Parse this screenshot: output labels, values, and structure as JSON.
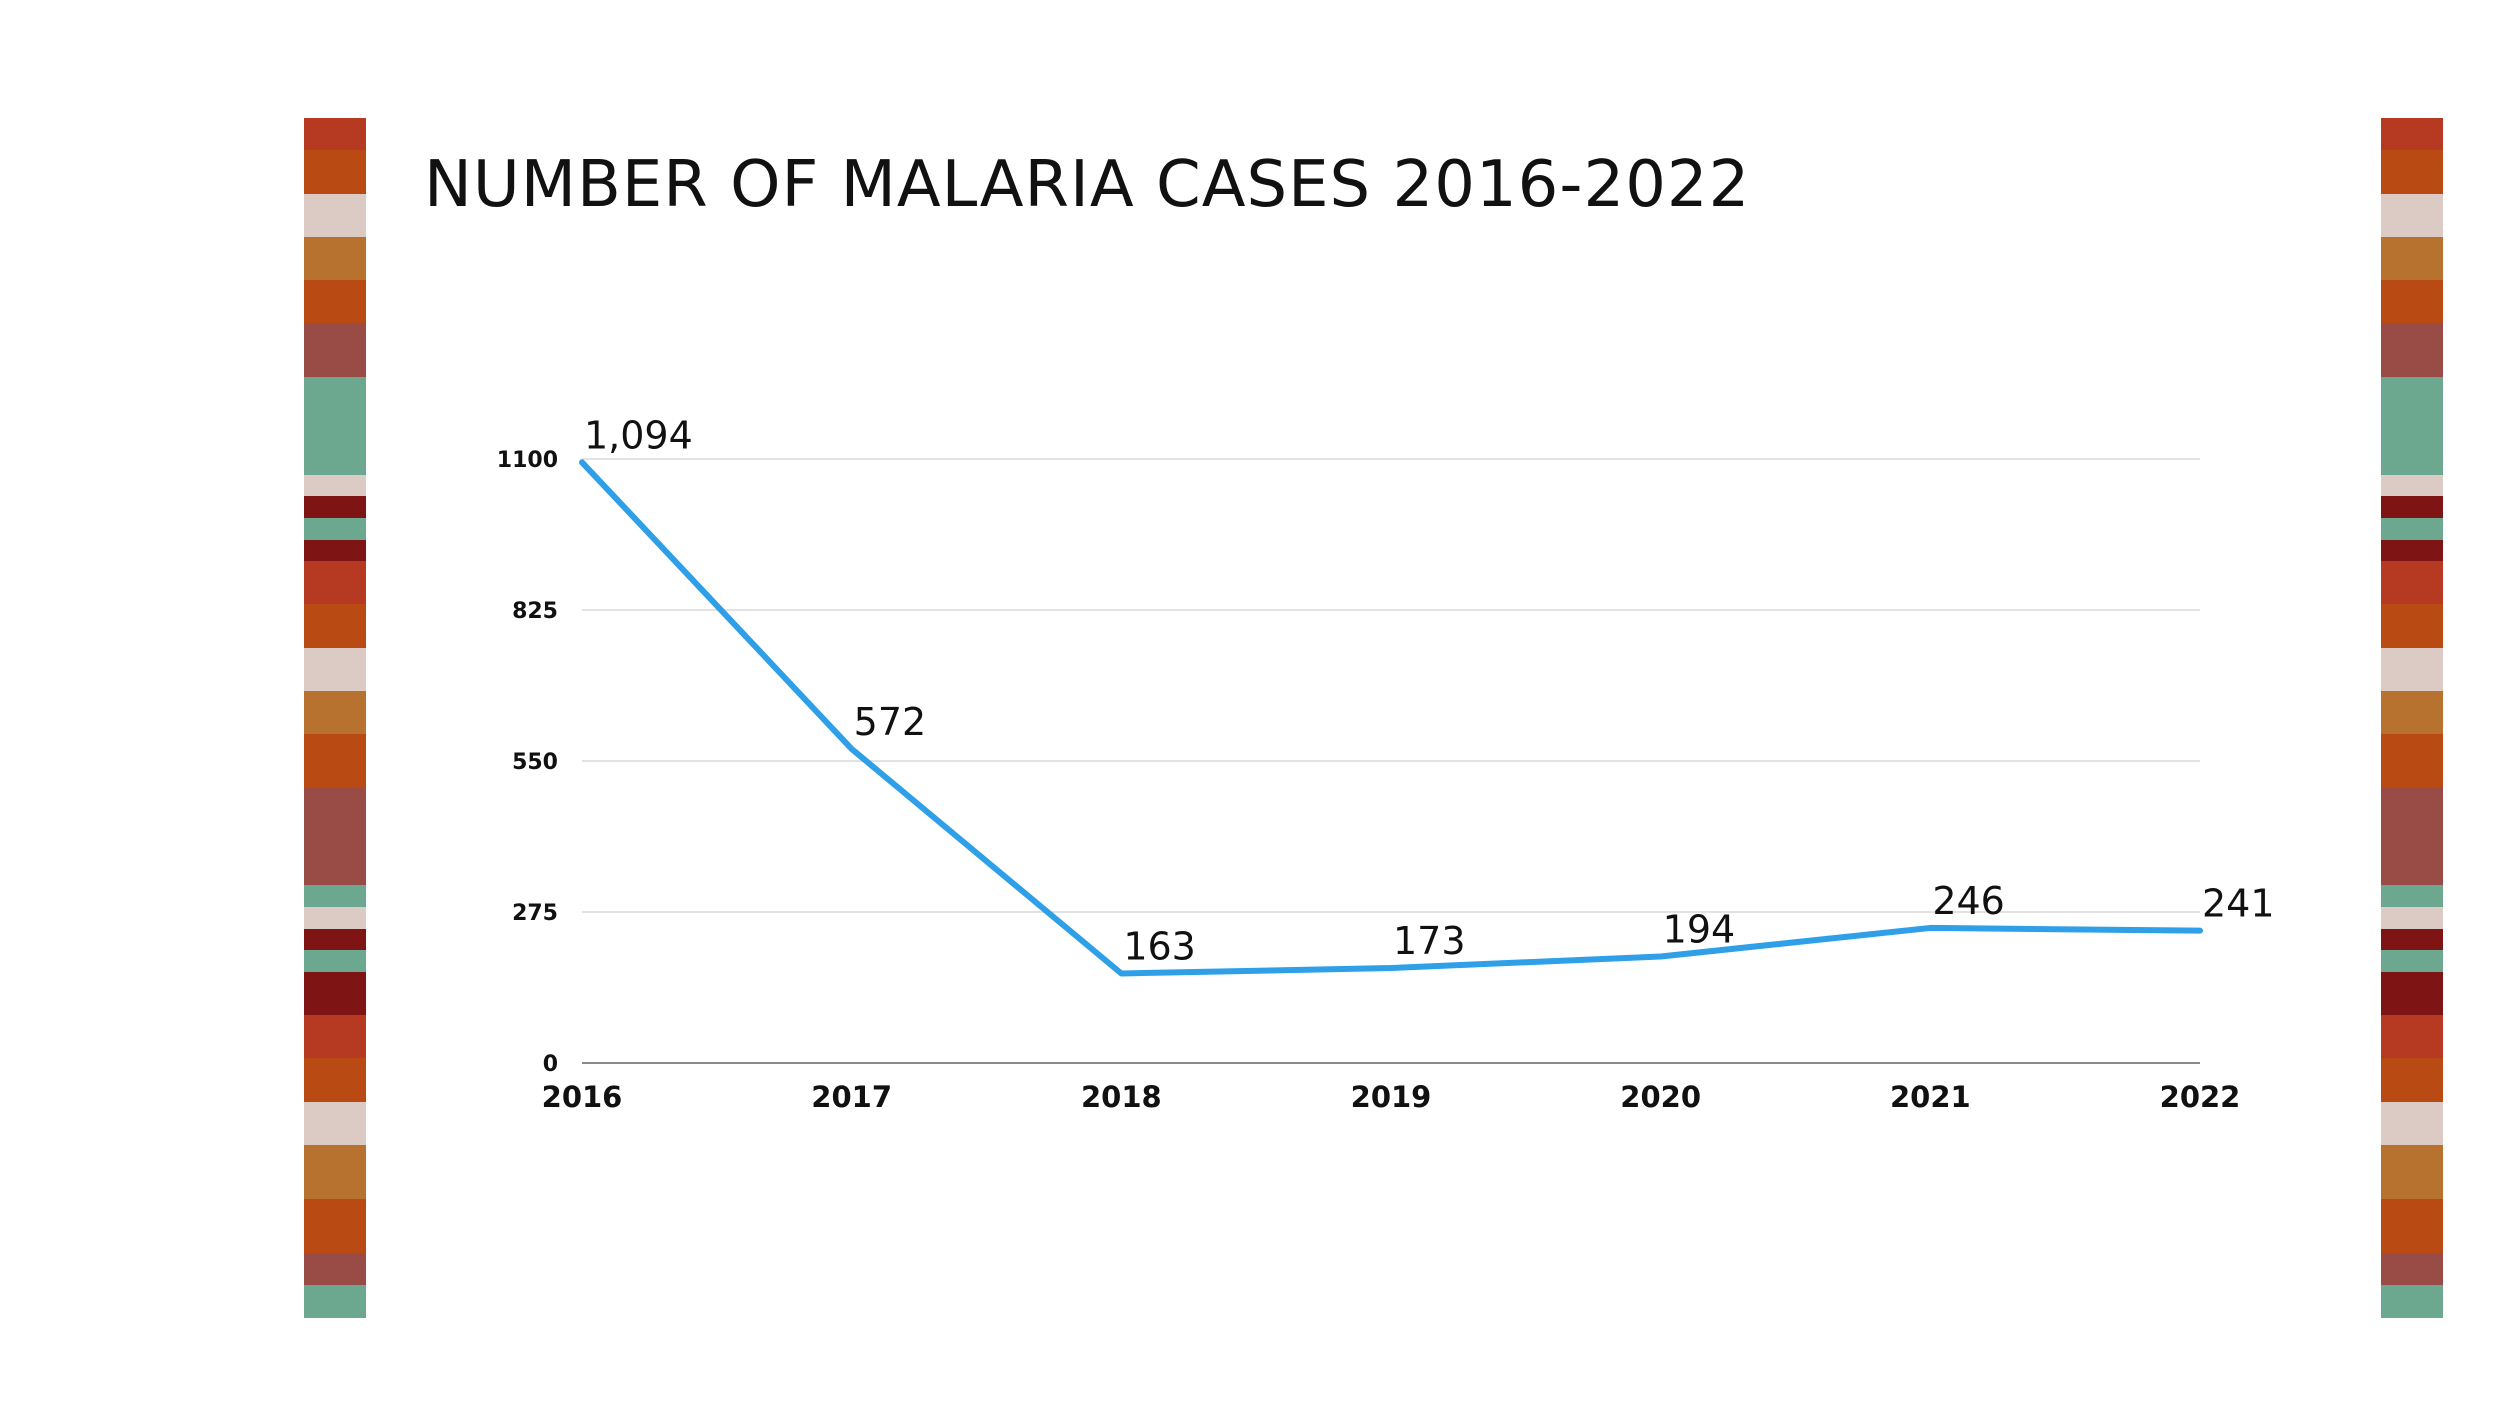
{
  "stripe_colors": [
    "#b53a21",
    "#b94a14",
    "#dccbc4",
    "#b8722f",
    "#b94a14",
    "#984c45",
    "#6ba88f",
    "#dccbc4",
    "#7e1414",
    "#6ba88f",
    "#7e1414",
    "#b53a21",
    "#b94a14",
    "#dccbc4",
    "#b8722f",
    "#b94a14",
    "#984c45",
    "#6ba88f",
    "#dccbc4",
    "#7e1414",
    "#6ba88f",
    "#7e1414",
    "#b53a21",
    "#b94a14",
    "#dccbc4",
    "#b8722f",
    "#b94a14",
    "#984c45",
    "#6ba88f"
  ],
  "chart_data": {
    "type": "line",
    "title": "NUMBER OF MALARIA CASES 2016-2022",
    "categories": [
      "2016",
      "2017",
      "2018",
      "2019",
      "2020",
      "2021",
      "2022"
    ],
    "series": [
      {
        "name": "Malaria cases",
        "values": [
          1094,
          572,
          163,
          173,
          194,
          246,
          241
        ]
      }
    ],
    "data_labels": [
      "1,094",
      "572",
      "163",
      "173",
      "194",
      "246",
      "241"
    ],
    "yticks": [
      0,
      275,
      550,
      825,
      1100
    ],
    "ylim": [
      0,
      1100
    ],
    "xlabel": "",
    "ylabel": "",
    "grid": true,
    "line_color": "#2f9fe8",
    "grid_color": "#d9d9d9"
  }
}
